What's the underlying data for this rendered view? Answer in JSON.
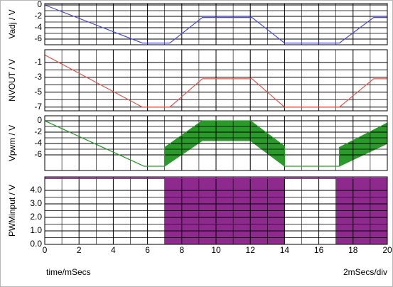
{
  "chart_data": [
    {
      "type": "line",
      "ylabel": "Vadj / V",
      "color": "#4a4ae0",
      "x": [
        0,
        5.7,
        7.3,
        9.2,
        12.1,
        14,
        17.2,
        19.2,
        20
      ],
      "values": [
        0,
        -6.7,
        -6.7,
        -2.2,
        -2.2,
        -6.7,
        -6.7,
        -2.2,
        -2.2
      ],
      "xlim": [
        0,
        20
      ],
      "xticks": [
        0,
        2,
        4,
        6,
        8,
        10,
        12,
        14,
        16,
        18,
        20
      ],
      "ylim": [
        -7,
        0.25
      ],
      "yticks": [
        0,
        -2,
        -4,
        -6
      ],
      "grid": true
    },
    {
      "type": "line",
      "ylabel": "NVOUT / V",
      "color": "#e05a50",
      "x": [
        0,
        5.7,
        7.3,
        9.2,
        12.1,
        14,
        17.2,
        19.2,
        20
      ],
      "values": [
        0,
        -7,
        -7,
        -3.2,
        -3.2,
        -7,
        -7,
        -3.2,
        -3.2
      ],
      "xlim": [
        0,
        20
      ],
      "xticks": [
        0,
        2,
        4,
        6,
        8,
        10,
        12,
        14,
        16,
        18,
        20
      ],
      "ylim": [
        -7.5,
        0.7
      ],
      "yticks": [
        -1,
        -3,
        -5,
        -7
      ],
      "grid": true
    },
    {
      "type": "band",
      "ylabel": "Vpwm / V",
      "color": "#2a9a2a",
      "x": [
        0,
        5.8,
        7.0,
        7.0,
        9.2,
        12.0,
        14.0,
        14.0,
        17.2,
        17.2,
        20
      ],
      "values": [
        0,
        -8,
        -8,
        -4.7,
        0,
        0,
        -4.5,
        -8,
        -8,
        -4.7,
        -0.4
      ],
      "low_values": [
        0,
        -8,
        -8,
        -8,
        -3.5,
        -3.5,
        -8,
        -8,
        -8,
        -8,
        -4
      ],
      "xlim": [
        0,
        20
      ],
      "xticks": [
        0,
        2,
        4,
        6,
        8,
        10,
        12,
        14,
        16,
        18,
        20
      ],
      "ylim": [
        -8.75,
        0.875
      ],
      "yticks": [
        0,
        -2,
        -4,
        -6
      ],
      "grid": true
    },
    {
      "type": "pulse",
      "ylabel": "PWMinput / V",
      "color": "#8e2a8e",
      "level": 4.9,
      "filled_ranges": [
        {
          "start": 7,
          "end": 14
        },
        {
          "start": 17,
          "end": 20
        }
      ],
      "xlim": [
        0,
        20
      ],
      "xticks": [
        0,
        2,
        4,
        6,
        8,
        10,
        12,
        14,
        16,
        18,
        20
      ],
      "ylim": [
        0,
        5
      ],
      "yticks": [
        {
          "value": 0,
          "label": "0.0"
        },
        {
          "value": 1,
          "label": "1.0"
        },
        {
          "value": 2,
          "label": "2.0"
        },
        {
          "value": 3,
          "label": "3.0"
        },
        {
          "value": 4,
          "label": "4.0"
        }
      ],
      "grid": true,
      "xlabel": "time/mSecs",
      "annotation": "2mSecs/div"
    }
  ]
}
